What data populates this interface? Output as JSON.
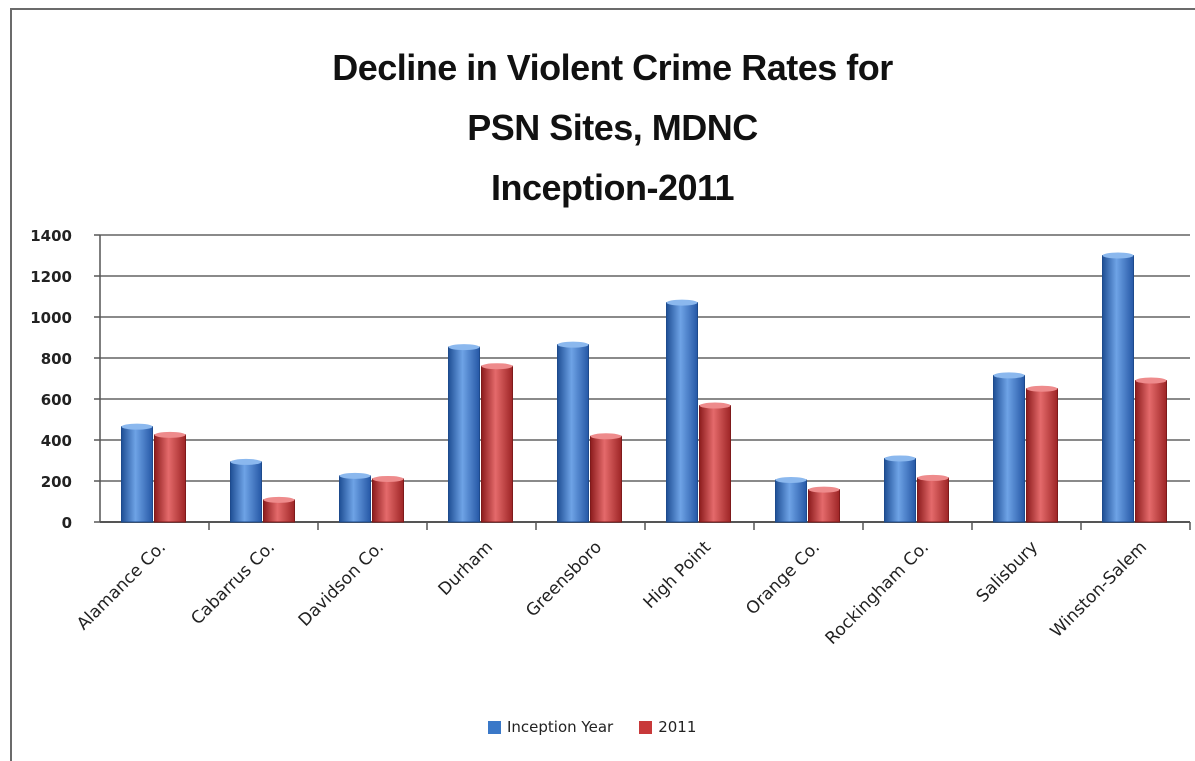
{
  "chart_data": {
    "type": "bar",
    "title_lines": [
      "Decline in Violent Crime Rates for",
      "PSN Sites, MDNC",
      "Inception-2011"
    ],
    "categories": [
      "Alamance Co.",
      "Cabarrus Co.",
      "Davidson Co.",
      "Durham",
      "Greensboro",
      "High Point",
      "Orange Co.",
      "Rockingham Co.",
      "Salisbury",
      "Winston-Salem"
    ],
    "series": [
      {
        "name": "Inception Year",
        "color": "#3a78c8",
        "values": [
          465,
          293,
          225,
          853,
          865,
          1070,
          205,
          310,
          715,
          1300
        ]
      },
      {
        "name": "2011",
        "color": "#c8393a",
        "values": [
          425,
          108,
          210,
          760,
          418,
          568,
          158,
          215,
          650,
          690
        ]
      }
    ],
    "yticks": [
      0,
      200,
      400,
      600,
      800,
      1000,
      1200,
      1400
    ],
    "ylim": [
      0,
      1400
    ],
    "grid": true,
    "legend_position": "bottom"
  }
}
